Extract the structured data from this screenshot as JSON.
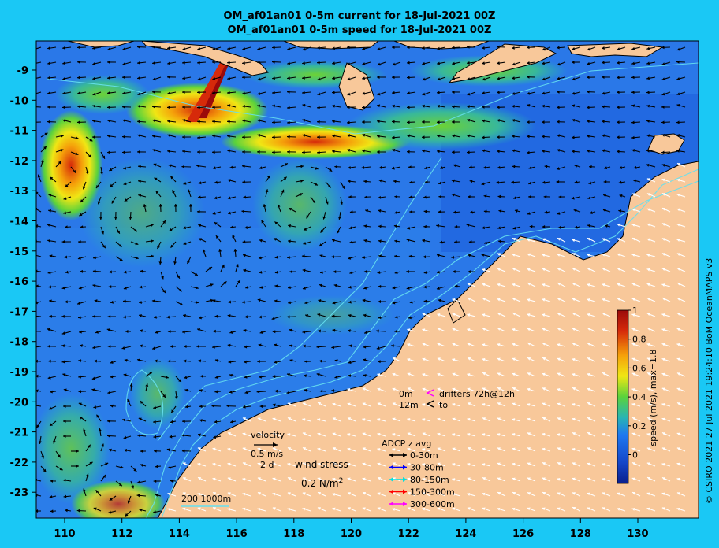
{
  "title": {
    "line1": "OM_af01an01 0-5m current for 18-Jul-2021 00Z",
    "line2": "OM_af01an01 0-5m speed for 18-Jul-2021 00Z"
  },
  "axes": {
    "x_ticks": [
      "110",
      "112",
      "114",
      "116",
      "118",
      "120",
      "122",
      "124",
      "126",
      "128",
      "130"
    ],
    "y_ticks": [
      "-9",
      "-10",
      "-11",
      "-12",
      "-13",
      "-14",
      "-15",
      "-16",
      "-17",
      "-18",
      "-19",
      "-20",
      "-21",
      "-22",
      "-23"
    ]
  },
  "colorbar": {
    "label": "speed (m/s), max=1.8",
    "ticks": [
      "1",
      "0.8",
      "0.6",
      "0.4",
      "0.2",
      "0"
    ],
    "colors": [
      "#9b0a0a",
      "#d62a0a",
      "#f5a00a",
      "#f0e614",
      "#5ad23c",
      "#28b4b4",
      "#1e78f0",
      "#1446c8",
      "#0a1e8c"
    ]
  },
  "legend": {
    "velocity_label": "velocity",
    "velocity_scale": "0.5 m/s",
    "velocity_days": "2 d",
    "wind_label": "wind stress",
    "wind_scale": "0.2 N/m",
    "wind_sup": "2",
    "drifter_0m": "0m",
    "drifter_12m": "12m",
    "drifter_text1": "drifters 72h@12h",
    "drifter_text2": "to",
    "adcp_title": "ADCP z avg",
    "adcp_items": [
      {
        "label": "0-30m",
        "color": "#000000"
      },
      {
        "label": "30-80m",
        "color": "#0000ff"
      },
      {
        "label": "80-150m",
        "color": "#00e0e0"
      },
      {
        "label": "150-300m",
        "color": "#ff0000"
      },
      {
        "label": "300-600m",
        "color": "#ff00ff"
      }
    ],
    "isobaths": "200  1000m"
  },
  "credit": "© CSIRO 2021  27 Jul 2021 19:24:10 BoM OceanMAPS v3",
  "colors": {
    "land": "#f8c89a",
    "background": "#1ac8f5",
    "ocean": "#2a78e8"
  }
}
